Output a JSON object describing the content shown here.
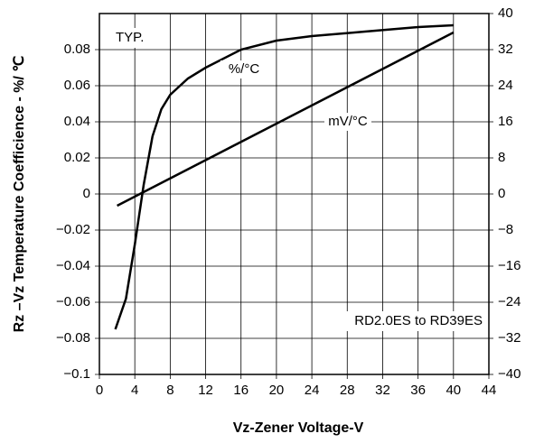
{
  "chart_data": {
    "type": "line",
    "xlabel": "Vz-Zener Voltage-V",
    "ylabel": "Rz –Vz Temperature Coefficience - %/ ℃",
    "annotations": [
      "TYP.",
      "RD2.0ES to RD39ES"
    ],
    "xlim": [
      0,
      44
    ],
    "xticks": [
      0,
      4,
      8,
      12,
      16,
      20,
      24,
      28,
      32,
      36,
      40,
      44
    ],
    "ylim": [
      -0.1,
      0.1
    ],
    "yticks": [
      {
        "value": -0.1,
        "label": "−0.1"
      },
      {
        "value": -0.08,
        "label": "−0.08"
      },
      {
        "value": -0.06,
        "label": "−0.06"
      },
      {
        "value": -0.04,
        "label": "−0.04"
      },
      {
        "value": -0.02,
        "label": "−0.02"
      },
      0,
      0.02,
      0.04,
      0.06,
      0.08
    ],
    "y2lim": [
      -40,
      40
    ],
    "y2ticks": [
      {
        "value": -40,
        "label": "−40"
      },
      {
        "value": -32,
        "label": "−32"
      },
      {
        "value": -24,
        "label": "−24"
      },
      {
        "value": -16,
        "label": "−16"
      },
      {
        "value": -8,
        "label": "−8"
      },
      0,
      8,
      16,
      24,
      32,
      40
    ],
    "grid": true,
    "series": [
      {
        "name": "%/°C",
        "color": "#000000",
        "x": [
          1.8,
          3,
          4,
          5,
          6,
          7,
          8,
          10,
          12,
          16,
          20,
          24,
          30,
          36,
          40
        ],
        "values": [
          -0.075,
          -0.058,
          -0.028,
          0.005,
          0.032,
          0.047,
          0.055,
          0.064,
          0.07,
          0.08,
          0.085,
          0.0875,
          0.09,
          0.0925,
          0.0935
        ]
      },
      {
        "name": "mV/°C",
        "color": "#000000",
        "axis": "y2",
        "x": [
          2,
          40
        ],
        "values": [
          -2.6,
          35.8
        ]
      }
    ]
  }
}
